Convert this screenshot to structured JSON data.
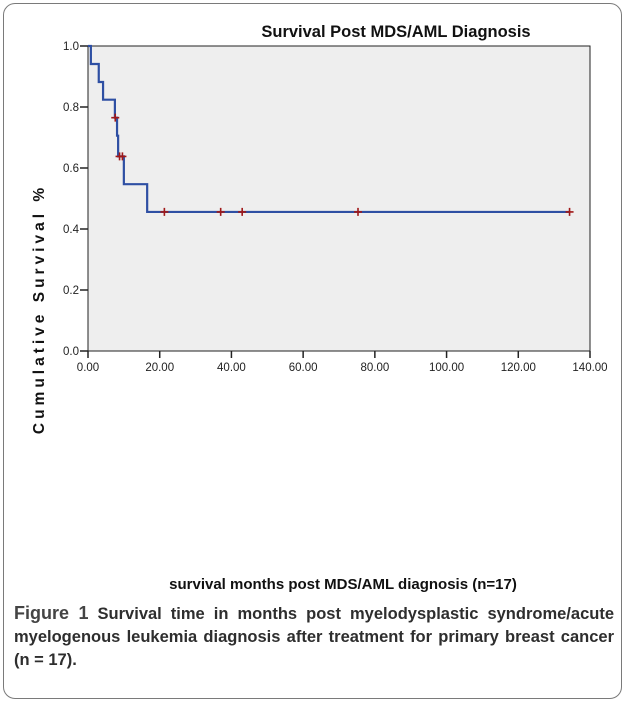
{
  "chart_data": {
    "type": "line",
    "step": true,
    "title": "Survival Post MDS/AML Diagnosis",
    "xlabel": "survival months post MDS/AML diagnosis (n=17)",
    "ylabel": "Cumulative Survival %",
    "xlim": [
      0,
      140
    ],
    "ylim": [
      0,
      1.0
    ],
    "xticks": [
      "0.00",
      "20.00",
      "40.00",
      "60.00",
      "80.00",
      "100.00",
      "120.00",
      "140.00"
    ],
    "yticks": [
      "0.0",
      "0.2",
      "0.4",
      "0.6",
      "0.8",
      "1.0"
    ],
    "grid": false,
    "series": [
      {
        "color": "#2e4fa3",
        "steps": [
          {
            "x": 0,
            "y": 1.0
          },
          {
            "x": 0.8,
            "y": 0.941
          },
          {
            "x": 3.0,
            "y": 0.882
          },
          {
            "x": 4.2,
            "y": 0.824
          },
          {
            "x": 7.5,
            "y": 0.765
          },
          {
            "x": 8.1,
            "y": 0.706
          },
          {
            "x": 8.4,
            "y": 0.638
          },
          {
            "x": 10.0,
            "y": 0.547
          },
          {
            "x": 16.5,
            "y": 0.456
          }
        ],
        "end_x": 134.3,
        "censored": [
          {
            "x": 7.6,
            "y": 0.765
          },
          {
            "x": 8.8,
            "y": 0.638
          },
          {
            "x": 9.6,
            "y": 0.638
          },
          {
            "x": 21.3,
            "y": 0.456
          },
          {
            "x": 37.0,
            "y": 0.456
          },
          {
            "x": 43.0,
            "y": 0.456
          },
          {
            "x": 75.3,
            "y": 0.456
          },
          {
            "x": 134.3,
            "y": 0.456
          }
        ],
        "censor_color": "#a01818"
      }
    ],
    "plot_background": "#eeeeee"
  },
  "caption": {
    "label": "Figure 1",
    "text": "Survival time in months post myelodysplastic syndrome/acute myelogenous leukemia diagnosis after treatment for primary breast cancer (n = 17)."
  }
}
